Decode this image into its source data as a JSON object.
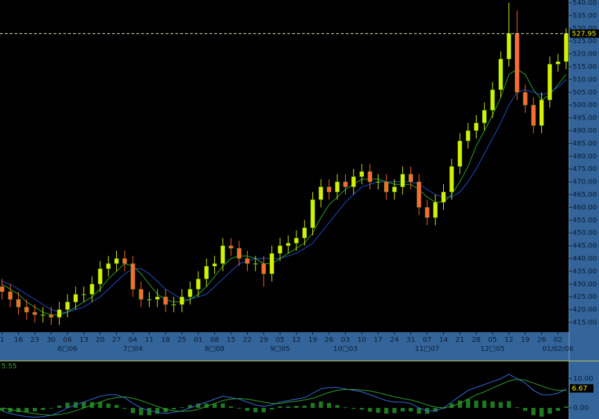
{
  "chart_data": [
    {
      "type": "candlestick",
      "categories": [
        "1",
        null,
        "16",
        null,
        "23",
        null,
        "30",
        null,
        "06",
        null,
        "13",
        null,
        "20",
        null,
        "27",
        null,
        "04",
        null,
        "11",
        null,
        "18",
        null,
        "25",
        null,
        "01",
        null,
        "08",
        null,
        "15",
        null,
        "22",
        null,
        "29",
        null,
        "05",
        null,
        "12",
        null,
        "19",
        null,
        "26",
        null,
        "03",
        null,
        "10",
        null,
        "17",
        null,
        "24",
        null,
        "31",
        null,
        "07",
        null,
        "14",
        null,
        "21",
        null,
        "28",
        null,
        "05",
        null,
        "12",
        null,
        "19",
        null,
        "26",
        null,
        "02",
        null
      ],
      "month_labels": [
        null,
        null,
        null,
        null,
        null,
        null,
        null,
        null,
        "6□06",
        null,
        null,
        null,
        null,
        null,
        null,
        null,
        "7□04",
        null,
        null,
        null,
        null,
        null,
        null,
        null,
        null,
        null,
        "8□08",
        null,
        null,
        null,
        null,
        null,
        null,
        null,
        "9□05",
        null,
        null,
        null,
        null,
        null,
        null,
        null,
        "10□03",
        null,
        null,
        null,
        null,
        null,
        null,
        null,
        null,
        null,
        "11□07",
        null,
        null,
        null,
        null,
        null,
        null,
        null,
        "12□05",
        null,
        null,
        null,
        null,
        null,
        null,
        null,
        "01/02/06",
        null
      ],
      "open": [
        429,
        427,
        424,
        421,
        419,
        418,
        418,
        417,
        420,
        423,
        426,
        426,
        430,
        436,
        438,
        440,
        438,
        428,
        424,
        424,
        425,
        422,
        422,
        425,
        428,
        432,
        437,
        438,
        445,
        444,
        440,
        438,
        438,
        434,
        442,
        445,
        446,
        448,
        452,
        463,
        468,
        466,
        470,
        468,
        472,
        474,
        470,
        470,
        466,
        468,
        473,
        470,
        460,
        456,
        462,
        466,
        476,
        486,
        490,
        493,
        498,
        506,
        518,
        528,
        505,
        500,
        492,
        502,
        516,
        517
      ],
      "high": [
        432,
        430,
        427,
        424,
        422,
        421,
        421,
        423,
        426,
        429,
        429,
        433,
        439,
        441,
        443,
        443,
        441,
        431,
        427,
        428,
        428,
        425,
        428,
        431,
        435,
        440,
        441,
        448,
        448,
        447,
        443,
        441,
        441,
        445,
        448,
        449,
        451,
        455,
        466,
        471,
        471,
        473,
        473,
        475,
        477,
        477,
        473,
        473,
        471,
        476,
        476,
        473,
        463,
        465,
        469,
        479,
        489,
        493,
        496,
        501,
        509,
        521,
        540,
        537,
        508,
        503,
        505,
        519,
        520,
        530
      ],
      "low": [
        424,
        421,
        418,
        416,
        415,
        415,
        414,
        414,
        417,
        420,
        423,
        423,
        427,
        433,
        435,
        435,
        425,
        421,
        421,
        421,
        419,
        419,
        419,
        422,
        425,
        429,
        434,
        435,
        441,
        437,
        435,
        435,
        429,
        431,
        439,
        442,
        443,
        445,
        449,
        460,
        463,
        463,
        465,
        465,
        469,
        467,
        467,
        463,
        463,
        465,
        467,
        457,
        453,
        453,
        459,
        463,
        473,
        483,
        487,
        490,
        495,
        503,
        515,
        502,
        497,
        489,
        489,
        499,
        513,
        514
      ],
      "close": [
        427,
        424,
        421,
        419,
        418,
        418,
        417,
        420,
        423,
        426,
        426,
        430,
        436,
        438,
        440,
        438,
        428,
        424,
        424,
        425,
        422,
        422,
        425,
        428,
        432,
        437,
        438,
        445,
        444,
        440,
        438,
        438,
        434,
        442,
        445,
        446,
        448,
        452,
        463,
        468,
        466,
        470,
        468,
        472,
        474,
        470,
        470,
        466,
        468,
        473,
        470,
        460,
        456,
        462,
        466,
        476,
        486,
        490,
        493,
        498,
        506,
        518,
        528,
        505,
        500,
        492,
        502,
        516,
        517,
        527.95
      ],
      "series": [
        {
          "color": "#2fa82f",
          "values": [
            430,
            428,
            426,
            423,
            421,
            419,
            418,
            418,
            419,
            421,
            423,
            425,
            428,
            432,
            435,
            438,
            437,
            434,
            430,
            426,
            424,
            423,
            423,
            424,
            426,
            429,
            433,
            437,
            440,
            441,
            441,
            440,
            438,
            438,
            440,
            442,
            444,
            446,
            450,
            456,
            461,
            464,
            467,
            469,
            471,
            471,
            471,
            470,
            469,
            469,
            469,
            467,
            464,
            462,
            462,
            465,
            470,
            476,
            484,
            490,
            496,
            503,
            512,
            514,
            512,
            506,
            502,
            504,
            508,
            512
          ]
        },
        {
          "color": "#2050d0",
          "values": [
            431,
            430,
            428,
            426,
            424,
            422,
            420,
            419,
            419,
            420,
            421,
            423,
            425,
            428,
            431,
            434,
            436,
            436,
            434,
            431,
            428,
            426,
            424,
            424,
            425,
            426,
            429,
            432,
            435,
            438,
            439,
            440,
            440,
            440,
            440,
            441,
            442,
            444,
            446,
            450,
            454,
            458,
            462,
            465,
            468,
            469,
            470,
            470,
            470,
            470,
            470,
            469,
            467,
            465,
            464,
            464,
            466,
            470,
            475,
            481,
            487,
            493,
            500,
            505,
            506,
            505,
            504,
            505,
            507,
            510
          ]
        }
      ],
      "last_price": 527.95,
      "up_color": "#d8f000",
      "down_color": "#ff6a30",
      "ylim": [
        415,
        540
      ],
      "yticks": [
        {
          "value": 540,
          "label": "540.00"
        },
        {
          "value": 535,
          "label": "535.00"
        },
        {
          "value": 530,
          "label": "530.00"
        },
        {
          "value": 525,
          "label": "525.00"
        },
        {
          "value": 520,
          "label": "520.00"
        },
        {
          "value": 515,
          "label": "515.00"
        },
        {
          "value": 510,
          "label": "510.00"
        },
        {
          "value": 505,
          "label": "505.00"
        },
        {
          "value": 500,
          "label": "500.00"
        },
        {
          "value": 495,
          "label": "495.00"
        },
        {
          "value": 490,
          "label": "490.00"
        },
        {
          "value": 485,
          "label": "485.00"
        },
        {
          "value": 480,
          "label": "480.00"
        },
        {
          "value": 475,
          "label": "475.00"
        },
        {
          "value": 470,
          "label": "470.00"
        },
        {
          "value": 465,
          "label": "465.00"
        },
        {
          "value": 460,
          "label": "460.00"
        },
        {
          "value": 455,
          "label": "455.00"
        },
        {
          "value": 450,
          "label": "450.00"
        },
        {
          "value": 445,
          "label": "445.00"
        },
        {
          "value": 440,
          "label": "440.00"
        },
        {
          "value": 435,
          "label": "435.00"
        },
        {
          "value": 430,
          "label": "430.00"
        },
        {
          "value": 425,
          "label": "425.00"
        },
        {
          "value": 420,
          "label": "420.00"
        },
        {
          "value": 415,
          "label": "415.00"
        }
      ]
    },
    {
      "type": "macd",
      "title": "5.55",
      "histogram": [
        -1,
        -1.5,
        -1.5,
        -1.5,
        -1.2,
        -0.7,
        0,
        0.8,
        1.8,
        2,
        2,
        2,
        2,
        1.5,
        1,
        -0.3,
        -1.8,
        -2.5,
        -2.5,
        -2,
        -1.5,
        -0.5,
        0.2,
        1,
        1.5,
        1.5,
        1.5,
        1.5,
        0.5,
        -0.2,
        -1,
        -1.5,
        -1.5,
        -0.5,
        0.5,
        0.5,
        0.7,
        0.8,
        1.7,
        2.2,
        1.7,
        1,
        0.2,
        -0.3,
        -0.6,
        -1.3,
        -1.7,
        -2,
        -1.8,
        -1.2,
        -1.2,
        -2,
        -2,
        -1.3,
        0,
        1.5,
        2.5,
        3,
        2.5,
        2.5,
        2.2,
        2,
        2.3,
        0.2,
        -1,
        -2.5,
        -3,
        -2,
        -1,
        0.5
      ],
      "histogram_color": "#1f7a1f",
      "series": [
        {
          "color": "#3a6ee8",
          "values": [
            -1,
            -2,
            -2.5,
            -3,
            -3.2,
            -3,
            -2.5,
            -1.5,
            0,
            1,
            2,
            3,
            4,
            4.5,
            4.5,
            3.5,
            1.5,
            0,
            -1,
            -1.5,
            -2,
            -1.5,
            -1,
            0,
            1,
            2,
            3,
            4,
            3.5,
            3,
            2,
            1,
            0.5,
            1,
            2,
            2.5,
            3,
            3.5,
            5,
            6.5,
            7,
            7,
            6.5,
            6,
            5.5,
            4.5,
            3.5,
            2.5,
            2,
            2,
            1.5,
            0,
            -1,
            -1,
            0,
            2,
            4,
            6,
            7,
            8,
            9,
            10,
            11.5,
            10,
            8.5,
            6,
            4.5,
            4.5,
            5,
            6.5
          ]
        },
        {
          "color": "#2fa82f",
          "values": [
            0,
            -0.5,
            -1,
            -1.5,
            -2,
            -2.3,
            -2.5,
            -2.3,
            -1.8,
            -1,
            0,
            1,
            2,
            3,
            3.5,
            3.8,
            3.3,
            2.5,
            1.5,
            0.5,
            -0.5,
            -1,
            -1.2,
            -1,
            -0.5,
            0.5,
            1.5,
            2.5,
            3,
            3.2,
            3,
            2.5,
            2,
            1.5,
            1.5,
            2,
            2.3,
            2.7,
            3.3,
            4.3,
            5.3,
            6,
            6.3,
            6.3,
            6.1,
            5.8,
            5.2,
            4.5,
            3.8,
            3.2,
            2.7,
            2,
            1,
            0.3,
            0,
            0.5,
            1.5,
            3,
            4.5,
            5.5,
            6.8,
            8,
            9.2,
            9.8,
            9.5,
            8.5,
            7.5,
            6.5,
            6,
            6
          ]
        }
      ],
      "last_value": 6.67,
      "ylim": [
        -3.81,
        15.95
      ],
      "yticks": [
        {
          "value": 10,
          "label": "10.00"
        },
        {
          "value": 0,
          "label": "0.00"
        }
      ]
    }
  ]
}
